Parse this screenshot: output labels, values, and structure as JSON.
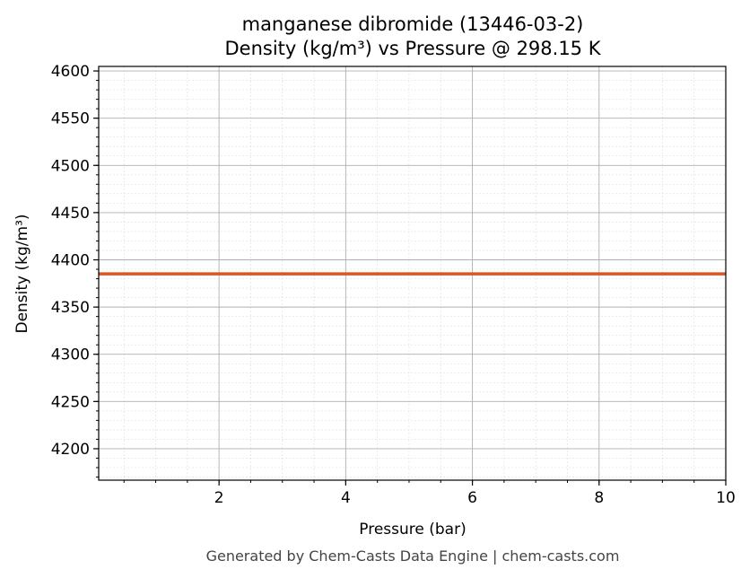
{
  "chart_data": {
    "type": "line",
    "title": "manganese dibromide (13446-03-2)",
    "subtitle": "Density (kg/m³) vs Pressure @ 298.15 K",
    "xlabel": "Pressure (bar)",
    "ylabel": "Density (kg/m³)",
    "xlim": [
      0.1,
      10
    ],
    "ylim": [
      4166.7,
      4604.8
    ],
    "xticks": [
      2,
      4,
      6,
      8,
      10
    ],
    "yticks": [
      4200,
      4250,
      4300,
      4350,
      4400,
      4450,
      4500,
      4550,
      4600
    ],
    "grid": true,
    "series": [
      {
        "x": [
          0.1,
          10
        ],
        "y": [
          4385.1,
          4385.1
        ],
        "color": "#e05420"
      }
    ]
  },
  "footer": "Generated by Chem-Casts Data Engine | chem-casts.com"
}
